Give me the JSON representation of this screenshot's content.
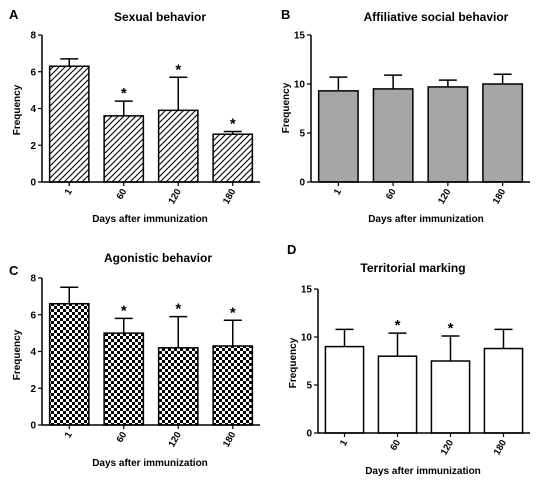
{
  "chart_data": [
    {
      "type": "bar",
      "panel_letter": "A",
      "title": "Sexual behavior",
      "xlabel": "Days after immunization",
      "ylabel": "Frequency",
      "categories": [
        "1",
        "60",
        "120",
        "180"
      ],
      "values": [
        6.3,
        3.6,
        3.9,
        2.6
      ],
      "error": [
        0.4,
        0.8,
        1.8,
        0.15
      ],
      "significant": [
        false,
        true,
        true,
        true
      ],
      "ylim": [
        0,
        8
      ],
      "yticks": [
        0,
        2,
        4,
        6,
        8
      ],
      "fill": "diagonal-hatch",
      "grid": false
    },
    {
      "type": "bar",
      "panel_letter": "B",
      "title": "Affiliative social behavior",
      "xlabel": "Days after immunization",
      "ylabel": "Frequency",
      "categories": [
        "1",
        "60",
        "120",
        "180"
      ],
      "values": [
        9.3,
        9.5,
        9.7,
        10.0
      ],
      "error": [
        1.4,
        1.4,
        0.7,
        1.0
      ],
      "significant": [
        false,
        false,
        false,
        false
      ],
      "ylim": [
        0,
        15
      ],
      "yticks": [
        0,
        5,
        10,
        15
      ],
      "fill": "#a6a6a6",
      "grid": false
    },
    {
      "type": "bar",
      "panel_letter": "C",
      "title": "Agonistic behavior",
      "xlabel": "Days after immunization",
      "ylabel": "Frequency",
      "categories": [
        "1",
        "60",
        "120",
        "180"
      ],
      "values": [
        6.6,
        5.0,
        4.2,
        4.3
      ],
      "error": [
        0.9,
        0.8,
        1.7,
        1.4
      ],
      "significant": [
        false,
        true,
        true,
        true
      ],
      "ylim": [
        0,
        8
      ],
      "yticks": [
        0,
        2,
        4,
        6,
        8
      ],
      "fill": "checkerboard",
      "grid": false
    },
    {
      "type": "bar",
      "panel_letter": "D",
      "title": "Territorial marking",
      "xlabel": "Days after immunization",
      "ylabel": "Frequency",
      "categories": [
        "1",
        "60",
        "120",
        "180"
      ],
      "values": [
        9.0,
        8.0,
        7.5,
        8.8
      ],
      "error": [
        1.8,
        2.4,
        2.6,
        2.0
      ],
      "significant": [
        false,
        true,
        true,
        false
      ],
      "ylim": [
        0,
        15
      ],
      "yticks": [
        0,
        5,
        10,
        15
      ],
      "fill": "#ffffff",
      "grid": false
    }
  ],
  "significance_marker": "*"
}
